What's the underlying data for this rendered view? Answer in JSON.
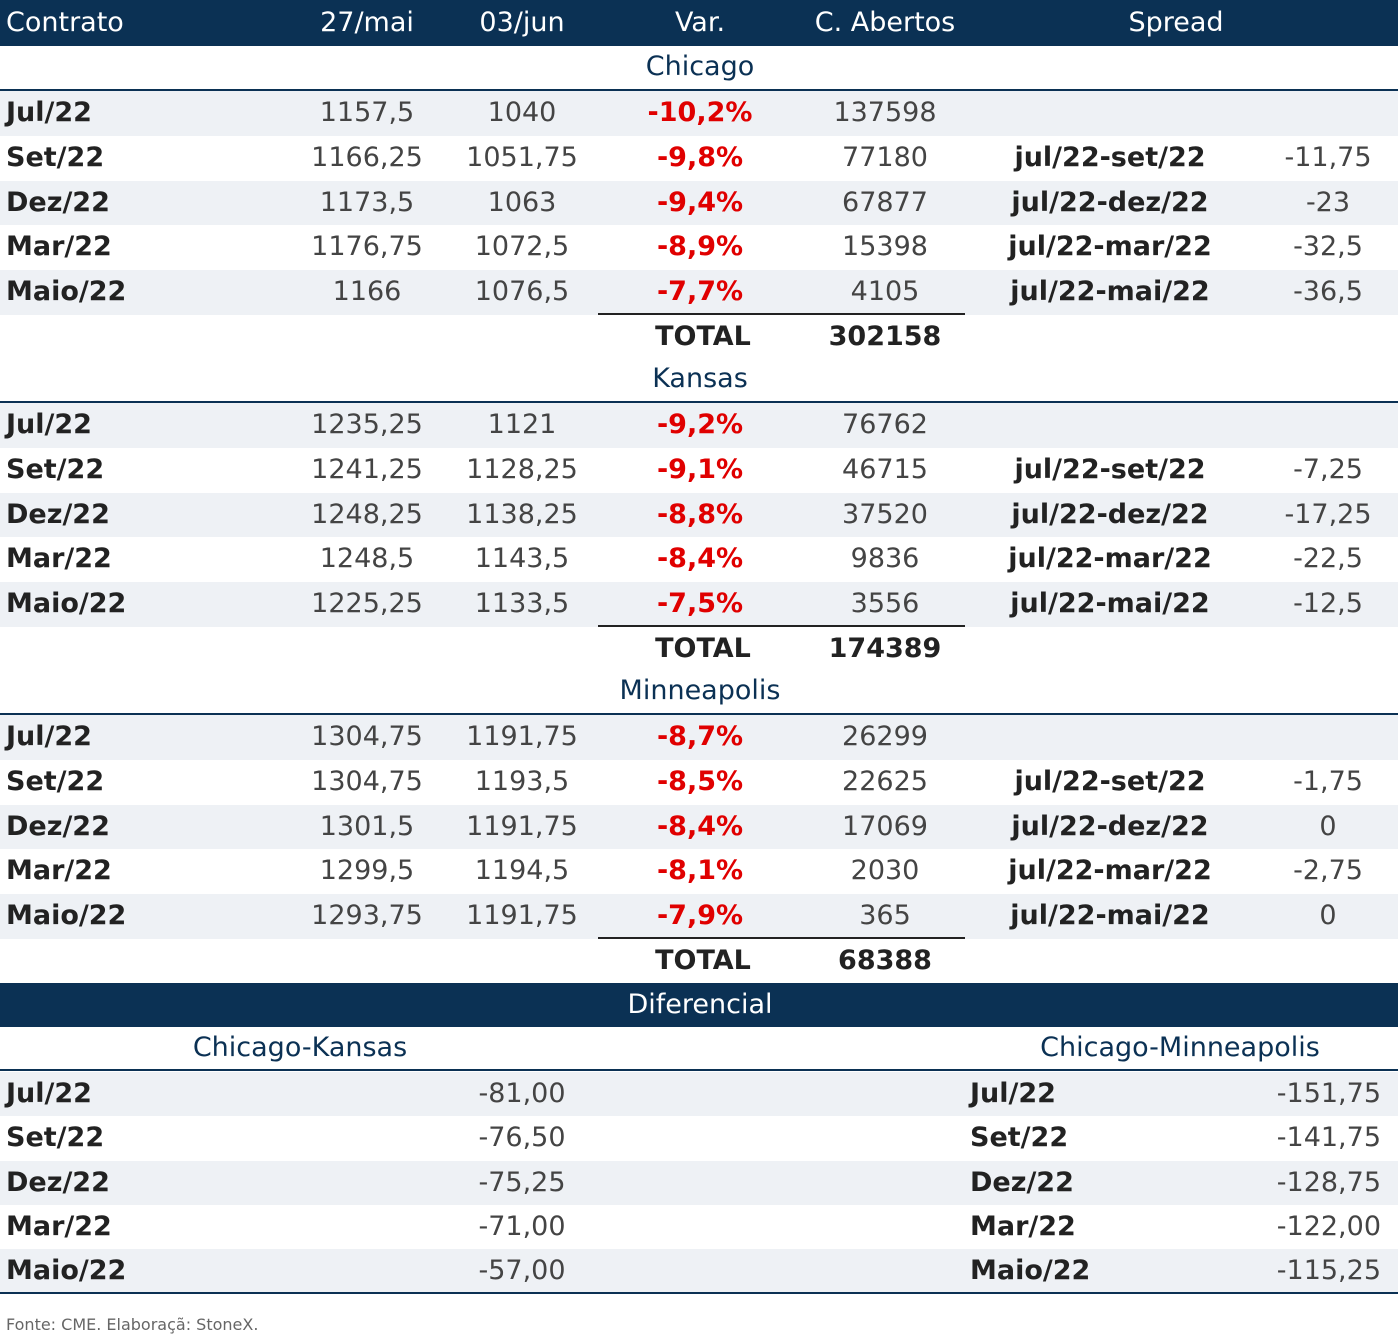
{
  "header": [
    "Contrato",
    "27/mai",
    "03/jun",
    "Var.",
    "C. Abertos",
    "Spread"
  ],
  "sections": [
    {
      "title": "Chicago",
      "rows": [
        {
          "contract": "Jul/22",
          "d1": "1157,5",
          "d2": "1040",
          "var": "-10,2%",
          "open": "137598"
        },
        {
          "contract": "Set/22",
          "d1": "1166,25",
          "d2": "1051,75",
          "var": "-9,8%",
          "open": "77180",
          "spread": "jul/22-set/22",
          "spread_value": "-11,75"
        },
        {
          "contract": "Dez/22",
          "d1": "1173,5",
          "d2": "1063",
          "var": "-9,4%",
          "open": "67877",
          "spread": "jul/22-dez/22",
          "spread_value": "-23"
        },
        {
          "contract": "Mar/22",
          "d1": "1176,75",
          "d2": "1072,5",
          "var": "-8,9%",
          "open": "15398",
          "spread": "jul/22-mar/22",
          "spread_value": "-32,5"
        },
        {
          "contract": "Maio/22",
          "d1": "1166",
          "d2": "1076,5",
          "var": "-7,7%",
          "open": "4105",
          "spread": "jul/22-mai/22",
          "spread_value": "-36,5"
        }
      ],
      "total_label": "TOTAL",
      "total": "302158"
    },
    {
      "title": "Kansas",
      "rows": [
        {
          "contract": "Jul/22",
          "d1": "1235,25",
          "d2": "1121",
          "var": "-9,2%",
          "open": "76762"
        },
        {
          "contract": "Set/22",
          "d1": "1241,25",
          "d2": "1128,25",
          "var": "-9,1%",
          "open": "46715",
          "spread": "jul/22-set/22",
          "spread_value": "-7,25"
        },
        {
          "contract": "Dez/22",
          "d1": "1248,25",
          "d2": "1138,25",
          "var": "-8,8%",
          "open": "37520",
          "spread": "jul/22-dez/22",
          "spread_value": "-17,25"
        },
        {
          "contract": "Mar/22",
          "d1": "1248,5",
          "d2": "1143,5",
          "var": "-8,4%",
          "open": "9836",
          "spread": "jul/22-mar/22",
          "spread_value": "-22,5"
        },
        {
          "contract": "Maio/22",
          "d1": "1225,25",
          "d2": "1133,5",
          "var": "-7,5%",
          "open": "3556",
          "spread": "jul/22-mai/22",
          "spread_value": "-12,5"
        }
      ],
      "total_label": "TOTAL",
      "total": "174389"
    },
    {
      "title": "Minneapolis",
      "rows": [
        {
          "contract": "Jul/22",
          "d1": "1304,75",
          "d2": "1191,75",
          "var": "-8,7%",
          "open": "26299"
        },
        {
          "contract": "Set/22",
          "d1": "1304,75",
          "d2": "1193,5",
          "var": "-8,5%",
          "open": "22625",
          "spread": "jul/22-set/22",
          "spread_value": "-1,75"
        },
        {
          "contract": "Dez/22",
          "d1": "1301,5",
          "d2": "1191,75",
          "var": "-8,4%",
          "open": "17069",
          "spread": "jul/22-dez/22",
          "spread_value": "0"
        },
        {
          "contract": "Mar/22",
          "d1": "1299,5",
          "d2": "1194,5",
          "var": "-8,1%",
          "open": "2030",
          "spread": "jul/22-mar/22",
          "spread_value": "-2,75"
        },
        {
          "contract": "Maio/22",
          "d1": "1293,75",
          "d2": "1191,75",
          "var": "-7,9%",
          "open": "365",
          "spread": "jul/22-mai/22",
          "spread_value": "0"
        }
      ],
      "total_label": "TOTAL",
      "total": "68388"
    }
  ],
  "diferencial": {
    "title": "Diferencial",
    "left": {
      "title": "Chicago-Kansas",
      "rows": [
        [
          "Jul/22",
          "-81,00"
        ],
        [
          "Set/22",
          "-76,50"
        ],
        [
          "Dez/22",
          "-75,25"
        ],
        [
          "Mar/22",
          "-71,00"
        ],
        [
          "Maio/22",
          "-57,00"
        ]
      ]
    },
    "right": {
      "title": "Chicago-Minneapolis",
      "rows": [
        [
          "Jul/22",
          "-151,75"
        ],
        [
          "Set/22",
          "-141,75"
        ],
        [
          "Dez/22",
          "-128,75"
        ],
        [
          "Mar/22",
          "-122,00"
        ],
        [
          "Maio/22",
          "-115,25"
        ]
      ]
    }
  },
  "footer": "Fonte: CME. Elaboraçã: StoneX."
}
